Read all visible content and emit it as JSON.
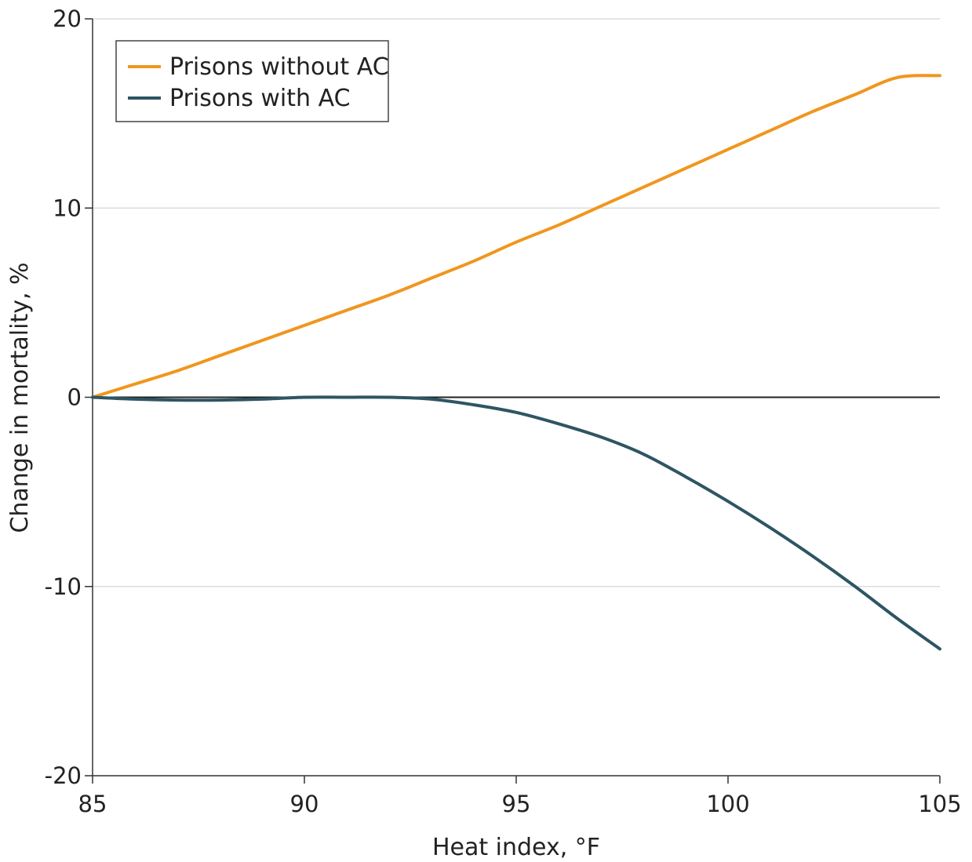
{
  "chart_data": {
    "type": "line",
    "xlabel": "Heat index, °F",
    "ylabel": "Change in mortality, %",
    "xlim": [
      85,
      105
    ],
    "ylim": [
      -20,
      20
    ],
    "x_ticks": [
      85,
      90,
      95,
      100,
      105
    ],
    "x_tick_labels": [
      "85",
      "90",
      "95",
      "100",
      "105"
    ],
    "y_ticks": [
      20,
      10,
      0,
      -10,
      -20
    ],
    "y_tick_labels": [
      "20",
      "10",
      "0",
      "-10",
      "-20"
    ],
    "grid": "horizontal",
    "legend_position": "top-left",
    "zero_line": true,
    "x": [
      85,
      86,
      87,
      88,
      89,
      90,
      91,
      92,
      93,
      94,
      95,
      96,
      97,
      98,
      99,
      100,
      101,
      102,
      103,
      104,
      105
    ],
    "series": [
      {
        "name": "Prisons without AC",
        "color": "#F0961E",
        "values": [
          0,
          0.7,
          1.4,
          2.2,
          3.0,
          3.8,
          4.6,
          5.4,
          6.3,
          7.2,
          8.2,
          9.1,
          10.1,
          11.1,
          12.1,
          13.1,
          14.1,
          15.1,
          16.0,
          16.9,
          17.0
        ]
      },
      {
        "name": "Prisons with AC",
        "color": "#2E5563",
        "values": [
          0,
          -0.1,
          -0.15,
          -0.15,
          -0.1,
          0,
          0,
          0,
          -0.1,
          -0.4,
          -0.8,
          -1.4,
          -2.1,
          -3.0,
          -4.2,
          -5.5,
          -6.9,
          -8.4,
          -10.0,
          -11.7,
          -13.3
        ]
      }
    ]
  }
}
